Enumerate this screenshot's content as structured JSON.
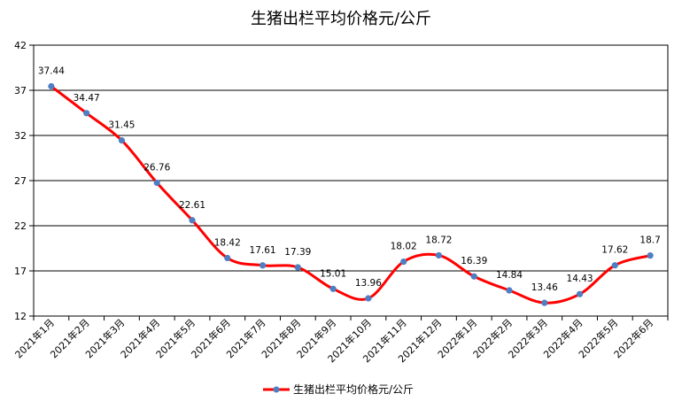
{
  "chart_data": {
    "type": "line",
    "title": "生猪出栏平均价格元/公斤",
    "categories": [
      "2021年1月",
      "2021年2月",
      "2021年3月",
      "2021年4月",
      "2021年5月",
      "2021年6月",
      "2021年7月",
      "2021年8月",
      "2021年9月",
      "2021年10月",
      "2021年11月",
      "2021年12月",
      "2022年1月",
      "2022年2月",
      "2022年3月",
      "2022年4月",
      "2022年5月",
      "2022年6月"
    ],
    "series": [
      {
        "name": "生猪出栏平均价格元/公斤",
        "values": [
          37.44,
          34.47,
          31.45,
          26.76,
          22.61,
          18.42,
          17.61,
          17.39,
          15.01,
          13.96,
          18.02,
          18.72,
          16.39,
          14.84,
          13.46,
          14.43,
          17.62,
          18.7
        ],
        "value_labels": [
          "37.44",
          "34.47",
          "31.45",
          "26.76",
          "22.61",
          "18.42",
          "17.61",
          "17.39",
          "15.01",
          "13.96",
          "18.02",
          "18.72",
          "16.39",
          "14.84",
          "13.46",
          "14.43",
          "17.62",
          "18.7"
        ],
        "line_color": "#ff0000",
        "marker_color": "#4f7ec2"
      }
    ],
    "ylim": [
      12,
      42
    ],
    "yticks": [
      12,
      17,
      22,
      27,
      32,
      37,
      42
    ],
    "ytick_labels": [
      "12",
      "17",
      "22",
      "27",
      "32",
      "37",
      "42"
    ],
    "xlabel": "",
    "ylabel": "",
    "grid": true,
    "legend": "bottom",
    "smooth": true
  }
}
